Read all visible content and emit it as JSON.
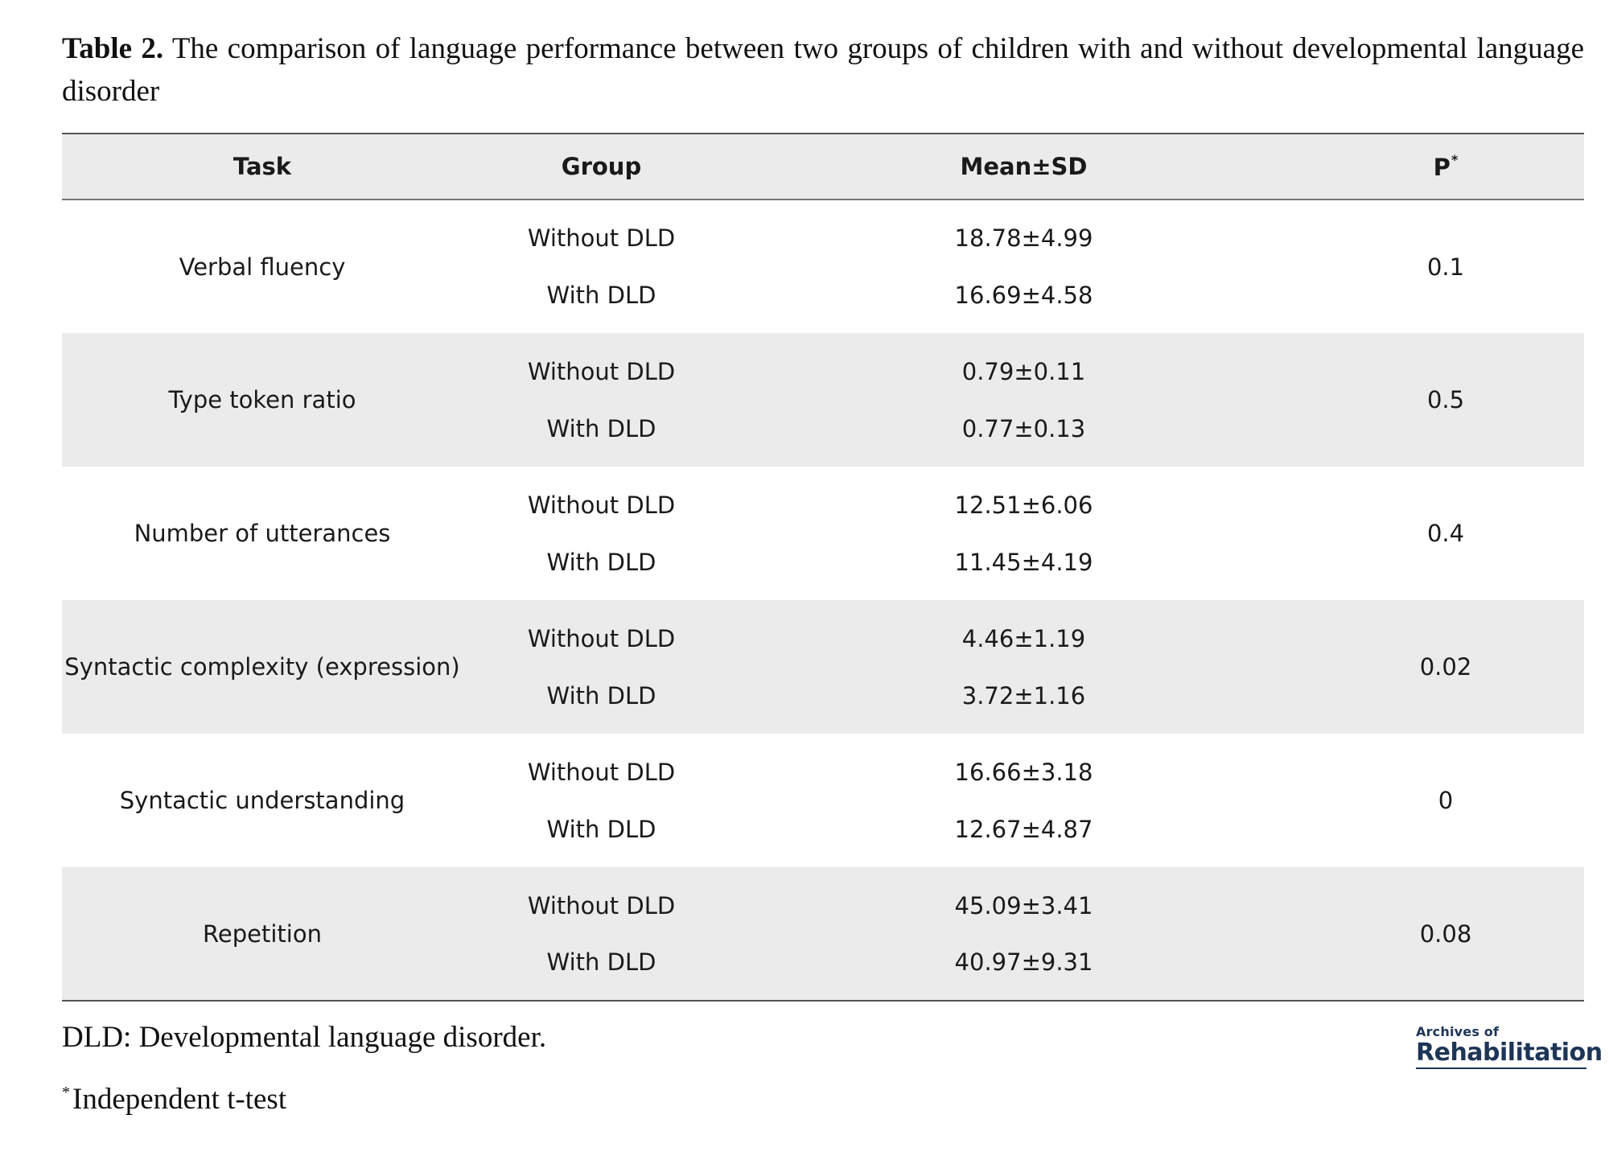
{
  "caption": {
    "label": "Table 2.",
    "text": "The comparison of language performance between two groups of children with and without developmental language disorder"
  },
  "table": {
    "headers": {
      "task": "Task",
      "group": "Group",
      "mean": "Mean±SD",
      "p": "P",
      "p_marker": "*"
    },
    "rows": [
      {
        "task": "Verbal fluency",
        "p": "0.1",
        "groups": [
          {
            "group": "Without DLD",
            "mean": "18.78±4.99"
          },
          {
            "group": "With DLD",
            "mean": "16.69±4.58"
          }
        ]
      },
      {
        "task": "Type token ratio",
        "p": "0.5",
        "groups": [
          {
            "group": "Without DLD",
            "mean": "0.79±0.11"
          },
          {
            "group": "With DLD",
            "mean": "0.77±0.13"
          }
        ]
      },
      {
        "task": "Number of utterances",
        "p": "0.4",
        "groups": [
          {
            "group": "Without DLD",
            "mean": "12.51±6.06"
          },
          {
            "group": "With DLD",
            "mean": "11.45±4.19"
          }
        ]
      },
      {
        "task": "Syntactic complexity (expression)",
        "p": "0.02",
        "groups": [
          {
            "group": "Without DLD",
            "mean": "4.46±1.19"
          },
          {
            "group": "With DLD",
            "mean": "3.72±1.16"
          }
        ]
      },
      {
        "task": "Syntactic understanding",
        "p": "0",
        "groups": [
          {
            "group": "Without DLD",
            "mean": "16.66±3.18"
          },
          {
            "group": "With DLD",
            "mean": "12.67±4.87"
          }
        ]
      },
      {
        "task": "Repetition",
        "p": "0.08",
        "groups": [
          {
            "group": "Without DLD",
            "mean": "45.09±3.41"
          },
          {
            "group": "With DLD",
            "mean": "40.97±9.31"
          }
        ]
      }
    ]
  },
  "footnotes": {
    "abbreviation": "DLD: Developmental language disorder.",
    "test_marker": "*",
    "test": "Independent t-test"
  },
  "logo": {
    "small": "Archives of",
    "big": "Rehabilitation",
    "color": "#1d3557"
  }
}
